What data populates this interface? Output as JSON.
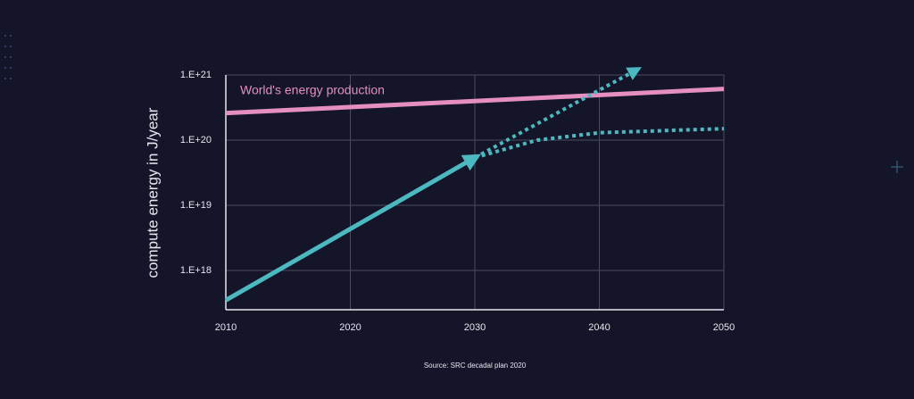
{
  "chart_data": {
    "type": "line",
    "ylabel": "compute energy in J/year",
    "source": "Source: SRC decadal plan 2020",
    "log_y": true,
    "grid": true,
    "xlim": [
      2010,
      2050
    ],
    "xticks": [
      2010,
      2020,
      2030,
      2040,
      2050
    ],
    "ylim": [
      2.5e+17,
      1e+21
    ],
    "yticks": [
      {
        "value": 1e+18,
        "label": "1.E+18"
      },
      {
        "value": 1e+19,
        "label": "1.E+19"
      },
      {
        "value": 1e+20,
        "label": "1.E+20"
      },
      {
        "value": 1e+21,
        "label": "1.E+21"
      }
    ],
    "series": [
      {
        "name": "World's energy production",
        "color": "#e48fc0",
        "style": "solid",
        "x": [
          2010,
          2050
        ],
        "values": [
          2.6e+20,
          6.1e+20
        ]
      },
      {
        "color": "#4cb8c0",
        "style": "solid",
        "arrow": true,
        "x": [
          2010,
          2030
        ],
        "values": [
          3.5e+17,
          5.4e+19
        ]
      },
      {
        "color": "#4cb8c0",
        "style": "dotted",
        "arrow": true,
        "x": [
          2030,
          2043
        ],
        "values": [
          5.4e+19,
          1.2e+21
        ]
      },
      {
        "color": "#4cb8c0",
        "style": "dotted",
        "x": [
          2030,
          2035,
          2040,
          2050
        ],
        "values": [
          5.4e+19,
          1e+20,
          1.3e+20,
          1.5e+20
        ]
      }
    ]
  }
}
